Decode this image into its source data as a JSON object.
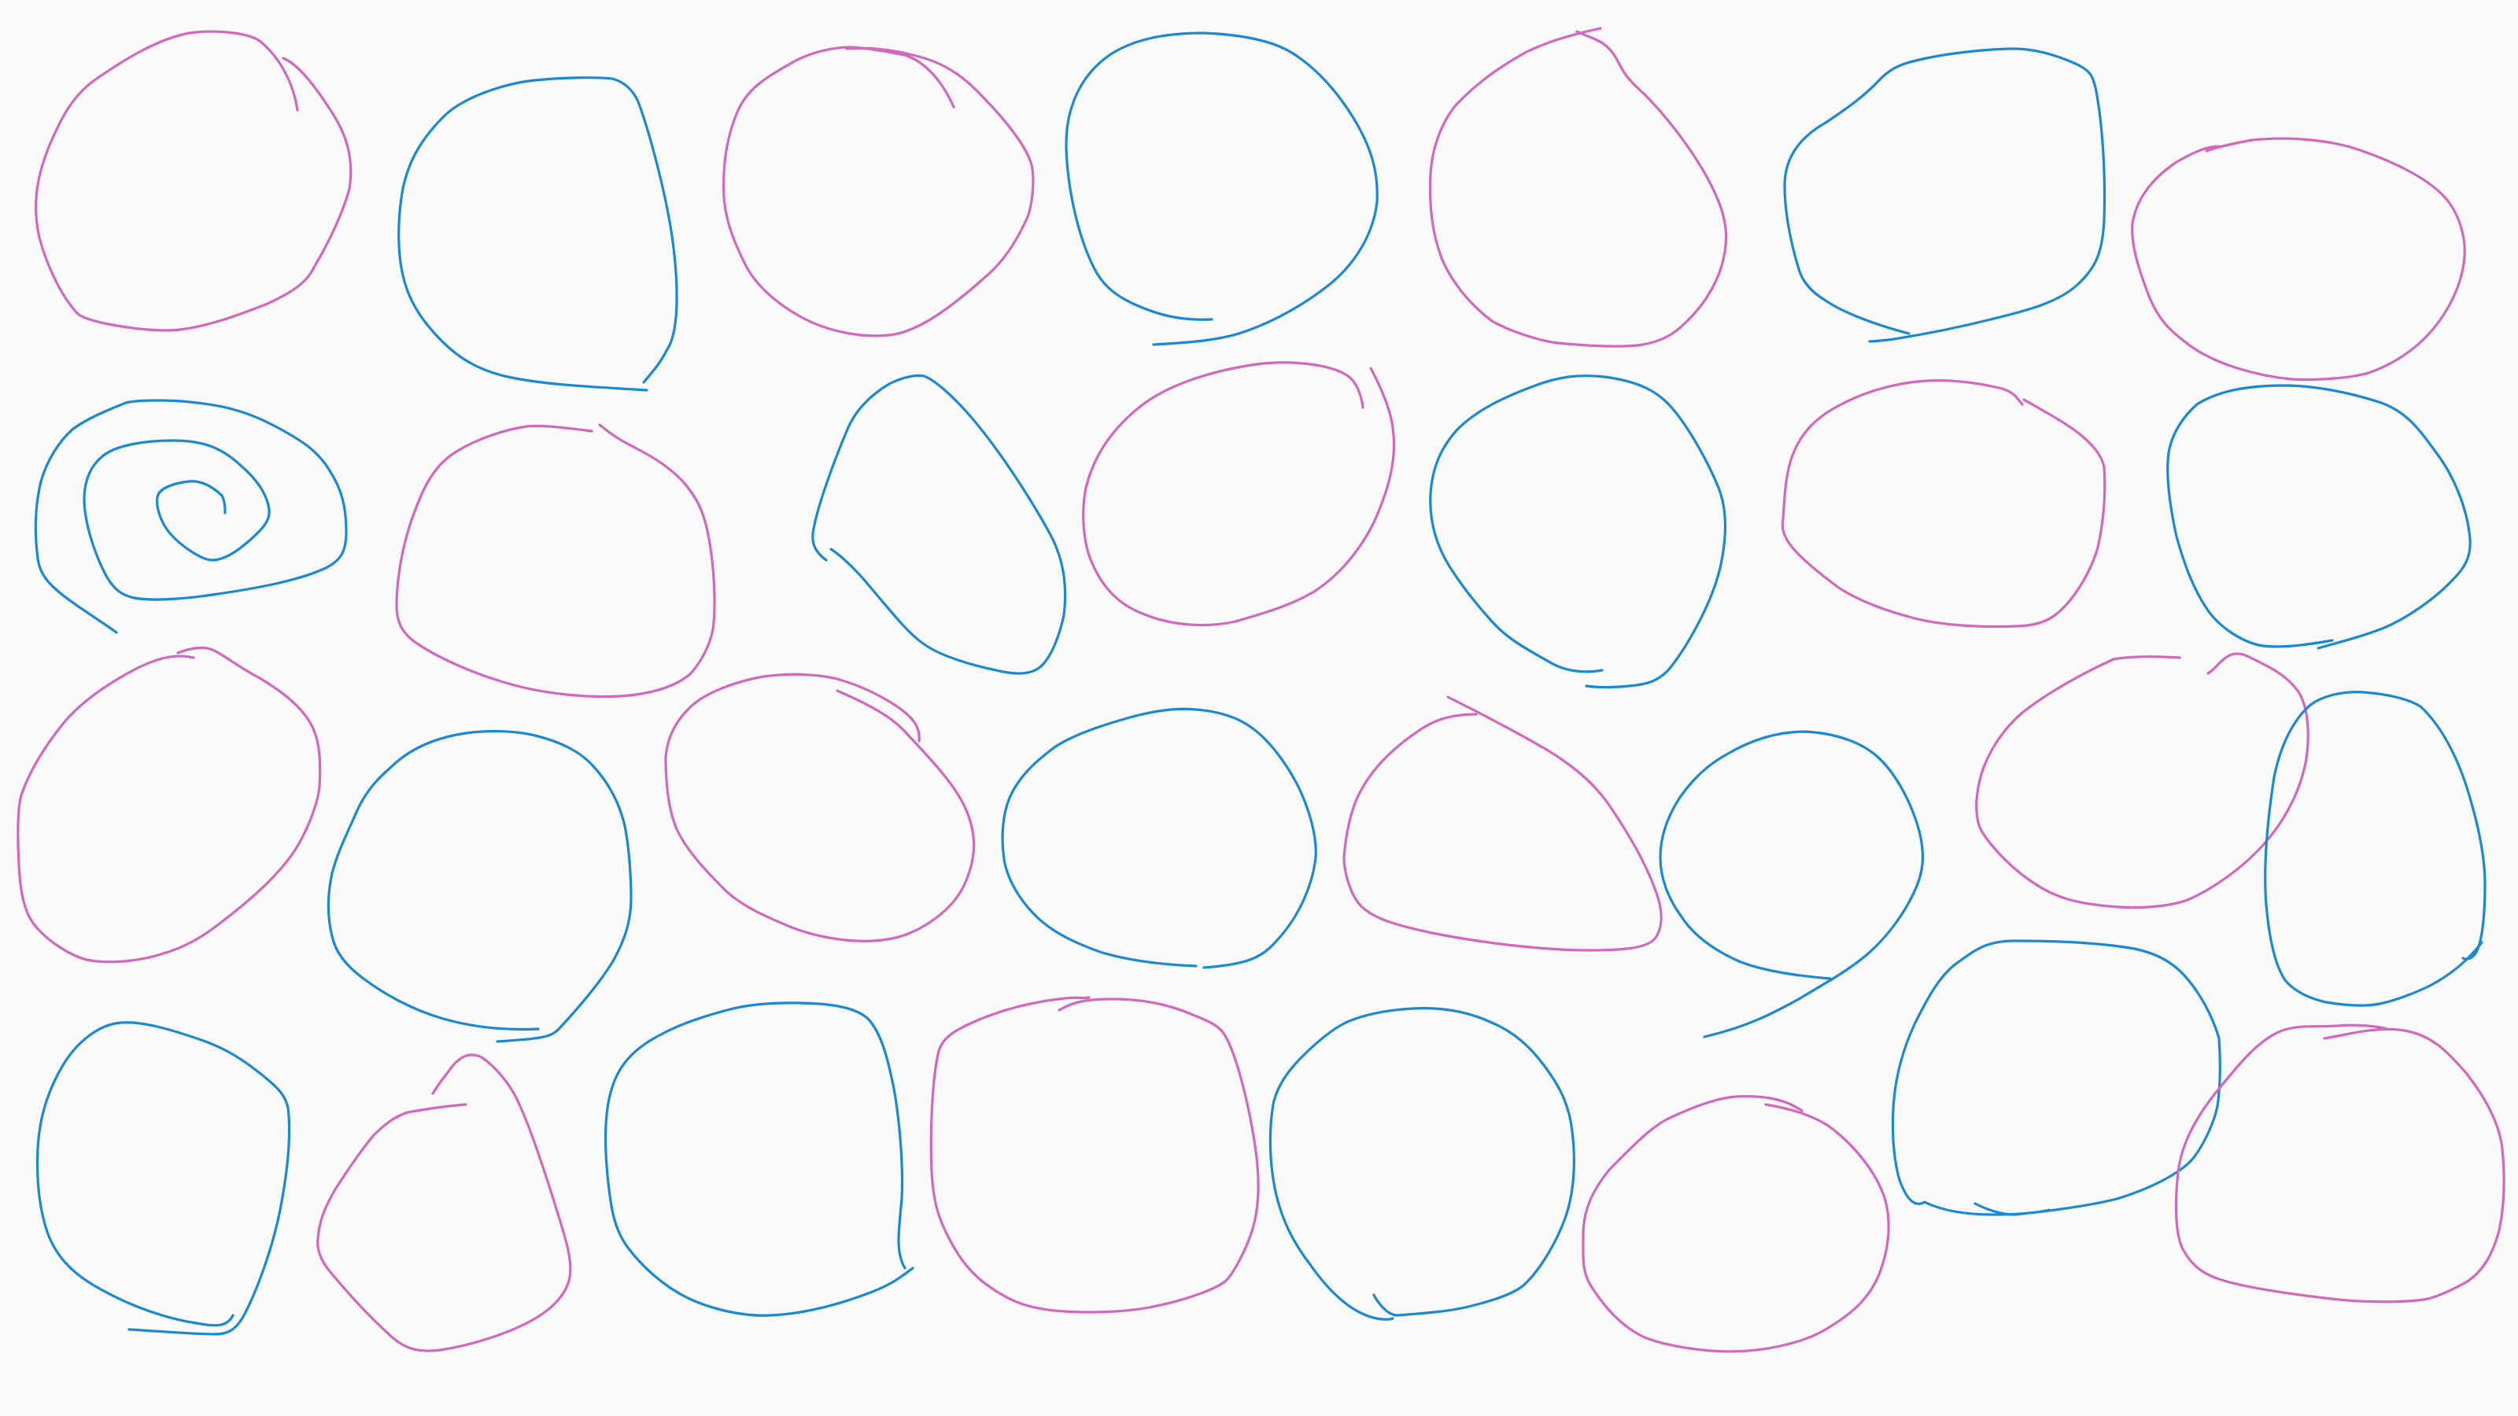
{
  "palette": {
    "background": "#f9f9f9",
    "blue": "#1b88d2",
    "pink": "#d168bd"
  },
  "shapes": [
    {
      "name": "loop-shape-r1c1",
      "color": "pink"
    },
    {
      "name": "loop-shape-r1c2",
      "color": "blue"
    },
    {
      "name": "loop-shape-r1c3",
      "color": "pink"
    },
    {
      "name": "loop-shape-r1c4",
      "color": "blue"
    },
    {
      "name": "loop-shape-r1c5",
      "color": "pink"
    },
    {
      "name": "loop-shape-r1c6",
      "color": "blue"
    },
    {
      "name": "loop-shape-r1c7",
      "color": "pink"
    },
    {
      "name": "spiral-shape-r2c1",
      "color": "blue"
    },
    {
      "name": "loop-shape-r2c2",
      "color": "pink"
    },
    {
      "name": "loop-shape-r2c3",
      "color": "blue"
    },
    {
      "name": "loop-shape-r2c4",
      "color": "pink"
    },
    {
      "name": "loop-shape-r2c5",
      "color": "blue"
    },
    {
      "name": "loop-shape-r2c6",
      "color": "pink"
    },
    {
      "name": "loop-shape-r2c7",
      "color": "blue"
    },
    {
      "name": "loop-shape-r3c1",
      "color": "pink"
    },
    {
      "name": "loop-shape-r3c2",
      "color": "blue"
    },
    {
      "name": "loop-shape-r3c3",
      "color": "pink"
    },
    {
      "name": "loop-shape-r3c4",
      "color": "blue"
    },
    {
      "name": "loop-shape-r3c5",
      "color": "pink"
    },
    {
      "name": "loop-shape-r3c6",
      "color": "blue"
    },
    {
      "name": "loop-shape-r3c7",
      "color": "pink"
    },
    {
      "name": "loop-shape-r3c8",
      "color": "blue"
    },
    {
      "name": "loop-shape-r4c1",
      "color": "blue"
    },
    {
      "name": "loop-shape-r4c2",
      "color": "pink"
    },
    {
      "name": "loop-shape-r4c3",
      "color": "blue"
    },
    {
      "name": "loop-shape-r4c4",
      "color": "pink"
    },
    {
      "name": "loop-shape-r4c5",
      "color": "blue"
    },
    {
      "name": "loop-shape-r4c6",
      "color": "pink"
    },
    {
      "name": "loop-shape-r4c7",
      "color": "blue"
    },
    {
      "name": "loop-shape-r4c8",
      "color": "pink"
    }
  ]
}
